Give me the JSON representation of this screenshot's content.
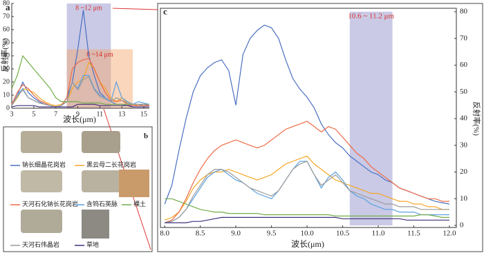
{
  "chart_data": [
    {
      "type": "line",
      "panel_label": "a",
      "xlabel": "波长(μm)",
      "ylabel": "反射率(%)",
      "xlim": [
        3,
        15.5
      ],
      "ylim": [
        0,
        80
      ],
      "xticks": [
        3,
        5,
        7,
        9,
        11,
        13,
        15
      ],
      "yticks": [
        0,
        10,
        20,
        30,
        40,
        50,
        60,
        70,
        80
      ],
      "bands": [
        {
          "from": 8,
          "to": 12,
          "top": 80,
          "label": "8 ~12 μm",
          "color": "#8a8ac8"
        },
        {
          "from": 8,
          "to": 14,
          "top": 45,
          "label": "8 ~14 μm",
          "color": "#f5a56a"
        }
      ],
      "x": [
        3,
        3.5,
        4,
        4.5,
        5,
        5.5,
        6,
        6.5,
        7,
        7.5,
        8,
        8.5,
        9,
        9.5,
        10,
        10.5,
        11,
        11.5,
        12,
        12.5,
        13,
        13.5,
        14,
        14.5,
        15,
        15.5
      ],
      "series": [
        {
          "color": "#4a6fc2",
          "values": [
            2,
            10,
            20,
            12,
            8,
            5,
            3,
            2,
            1,
            2,
            8,
            20,
            45,
            75,
            40,
            25,
            12,
            8,
            5,
            3,
            3,
            2,
            2,
            2,
            3,
            2
          ]
        },
        {
          "color": "#f5a623",
          "values": [
            2,
            8,
            15,
            14,
            12,
            8,
            5,
            3,
            2,
            3,
            5,
            15,
            20,
            22,
            35,
            30,
            20,
            15,
            8,
            5,
            8,
            4,
            3,
            2,
            2,
            2
          ]
        },
        {
          "color": "#ee6a45",
          "values": [
            3,
            12,
            18,
            15,
            10,
            6,
            4,
            2,
            1,
            2,
            8,
            30,
            35,
            37,
            38,
            30,
            20,
            12,
            6,
            5,
            6,
            3,
            2,
            2,
            2,
            2
          ]
        },
        {
          "color": "#5aa0e0",
          "values": [
            2,
            10,
            15,
            8,
            6,
            4,
            3,
            2,
            1,
            2,
            5,
            20,
            15,
            25,
            25,
            15,
            10,
            8,
            5,
            20,
            8,
            5,
            3,
            5,
            4,
            3
          ]
        },
        {
          "color": "#70ad47",
          "values": [
            15,
            25,
            40,
            35,
            30,
            25,
            20,
            15,
            8,
            5,
            5,
            5,
            5,
            4,
            4,
            4,
            4,
            3,
            3,
            3,
            3,
            3,
            3,
            3,
            3,
            3
          ]
        },
        {
          "color": "#9a9a9a",
          "values": [
            2,
            9,
            14,
            8,
            6,
            4,
            3,
            2,
            1,
            2,
            5,
            20,
            14,
            22,
            24,
            14,
            9,
            7,
            5,
            8,
            6,
            4,
            3,
            3,
            3,
            3
          ]
        },
        {
          "color": "#3f2e7a",
          "values": [
            1,
            2,
            2,
            2,
            2,
            1,
            1,
            1,
            1,
            1,
            1,
            1,
            3,
            3,
            3,
            3,
            2,
            2,
            2,
            2,
            2,
            2,
            1,
            1,
            1,
            1
          ]
        }
      ]
    },
    {
      "type": "line",
      "panel_label": "c",
      "xlabel": "波长(μm)",
      "ylabel": "反射率(%)",
      "xlim": [
        7.94,
        12
      ],
      "ylim": [
        0,
        80
      ],
      "xticks": [
        {
          "value": 8,
          "label": "8.0"
        },
        8.5,
        {
          "value": 9,
          "label": "9.0"
        },
        9.5,
        {
          "value": 10,
          "label": "10.0"
        },
        10.5,
        {
          "value": 11,
          "label": "11.0"
        },
        11.5,
        {
          "value": 12,
          "label": "12.0"
        }
      ],
      "yticks": [
        0,
        10,
        20,
        30,
        40,
        50,
        60,
        70,
        80
      ],
      "bands": [
        {
          "from": 10.6,
          "to": 11.2,
          "top": 80,
          "label": "10.6 ~ 11.2 μm",
          "color": "#8a8ac8"
        }
      ],
      "x": [
        8,
        8.1,
        8.2,
        8.3,
        8.4,
        8.5,
        8.6,
        8.7,
        8.8,
        8.9,
        9,
        9.1,
        9.2,
        9.3,
        9.4,
        9.5,
        9.6,
        9.7,
        9.8,
        9.9,
        10,
        10.1,
        10.2,
        10.3,
        10.4,
        10.5,
        10.6,
        10.7,
        10.8,
        10.9,
        11,
        11.1,
        11.2,
        11.3,
        11.4,
        11.5,
        11.6,
        11.7,
        11.8,
        11.9,
        12
      ],
      "series": [
        {
          "name": "钠长细晶花岗岩",
          "color": "#4a6fc2",
          "values": [
            8,
            15,
            28,
            40,
            50,
            56,
            59,
            61,
            62,
            58,
            45,
            64,
            70,
            73,
            75,
            74,
            70,
            62,
            55,
            51,
            48,
            44,
            38,
            34,
            31,
            29,
            26,
            24,
            22,
            20,
            19,
            17,
            16,
            14,
            13,
            12,
            11,
            10,
            9,
            8.5,
            8
          ]
        },
        {
          "name": "黑云母二长花岗岩",
          "color": "#f5a623",
          "values": [
            2,
            3,
            5,
            9,
            14,
            17,
            19,
            20,
            20,
            21,
            20,
            19,
            18,
            17,
            18,
            19,
            21,
            23,
            24,
            25,
            26,
            23,
            21,
            19,
            17,
            16,
            15,
            14,
            13,
            12,
            12,
            11,
            10,
            9,
            9,
            8,
            8,
            7,
            7,
            6,
            6
          ]
        },
        {
          "name": "天河石化钠长花岗岩",
          "color": "#ee6a45",
          "values": [
            1,
            2,
            5,
            10,
            16,
            21,
            25,
            28,
            30,
            31,
            32,
            31,
            30,
            29,
            30,
            32,
            34,
            36,
            37,
            38,
            39,
            37,
            35,
            37,
            36,
            33,
            30,
            27,
            25,
            22,
            20,
            18,
            16,
            14,
            13,
            12,
            11,
            10,
            10,
            9,
            9
          ]
        },
        {
          "name": "含钨石英脉",
          "color": "#5aa0e0",
          "values": [
            1,
            1.5,
            3,
            6,
            10,
            14,
            18,
            20,
            21,
            19,
            17,
            16,
            14,
            12,
            11,
            10,
            13,
            17,
            21,
            24,
            24,
            19,
            14,
            18,
            20,
            17,
            13,
            11,
            10,
            8,
            7,
            6,
            6,
            5,
            5,
            5,
            4,
            4,
            4,
            4,
            4
          ]
        },
        {
          "name": "裸土",
          "color": "#70ad47",
          "values": [
            10,
            10,
            9,
            8,
            7,
            6,
            5.5,
            5,
            5,
            4.5,
            4.5,
            4.5,
            4.5,
            4.5,
            4,
            4,
            4,
            4,
            4,
            4,
            4,
            4,
            4,
            4,
            3.5,
            3.5,
            3.5,
            3.5,
            3.5,
            3.5,
            3.5,
            3.5,
            3.5,
            3.5,
            3.5,
            3.5,
            4,
            4,
            3.5,
            3,
            3
          ]
        },
        {
          "name": "天河石伟晶岩",
          "color": "#9a9a9a",
          "values": [
            1,
            1.5,
            3,
            6,
            11,
            15,
            19,
            21,
            21,
            20,
            18,
            16,
            14,
            13,
            12,
            11,
            13,
            17,
            21,
            23,
            24,
            19,
            15,
            17,
            19,
            16,
            13,
            12,
            11,
            10,
            9,
            8,
            8,
            7,
            7,
            7,
            6,
            6,
            6,
            6,
            6
          ]
        },
        {
          "name": "草地",
          "color": "#3f2e7a",
          "values": [
            1,
            1,
            1,
            1,
            1.5,
            1.5,
            2,
            2.5,
            3,
            3,
            3,
            3,
            3,
            3,
            3,
            3,
            3,
            3,
            3,
            3,
            3,
            3,
            3,
            3,
            3,
            2.5,
            2.5,
            2.5,
            2.5,
            2.5,
            2.5,
            2.5,
            2.5,
            2.5,
            2,
            2,
            2,
            2,
            2,
            2,
            2
          ]
        }
      ]
    }
  ],
  "legend_panel": {
    "label": "b"
  }
}
